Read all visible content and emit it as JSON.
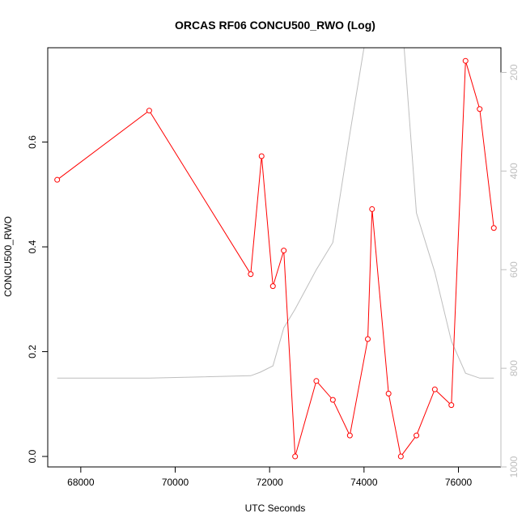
{
  "chart_data": {
    "type": "line",
    "title": "ORCAS RF06 CONCU500_RWO (Log)",
    "xlabel": "UTC Seconds",
    "ylabel": "CONCU500_RWO",
    "xlim": [
      67300,
      76900
    ],
    "ylim": [
      -0.02,
      0.78
    ],
    "x_ticks": [
      68000,
      70000,
      72000,
      74000,
      76000
    ],
    "y_ticks": [
      0.0,
      0.2,
      0.4,
      0.6
    ],
    "y_tick_labels": [
      "0.0",
      "0.2",
      "0.4",
      "0.6"
    ],
    "y2_range": [
      1000,
      150
    ],
    "y2_ticks": [
      200,
      400,
      600,
      800,
      1000
    ],
    "grid": false,
    "series": [
      {
        "color": "#ff0000",
        "marker": "open-circle",
        "axis": "left",
        "x": [
          67500,
          69450,
          71600,
          71830,
          72070,
          72300,
          72540,
          72990,
          73340,
          73700,
          74080,
          74170,
          74520,
          74780,
          75110,
          75500,
          75850,
          76150,
          76450,
          76750
        ],
        "y": [
          0.528,
          0.66,
          0.348,
          0.573,
          0.325,
          0.393,
          0.0,
          0.144,
          0.108,
          0.04,
          0.224,
          0.472,
          0.12,
          0.0,
          0.04,
          0.128,
          0.098,
          0.755,
          0.663,
          0.436
        ]
      },
      {
        "color": "#bebebe",
        "marker": "none",
        "axis": "right",
        "x": [
          67500,
          69450,
          71600,
          71800,
          72070,
          72300,
          72540,
          72990,
          73340,
          73700,
          74000,
          74850,
          75110,
          75500,
          75850,
          76150,
          76450,
          76750
        ],
        "y": [
          820,
          820,
          815,
          808,
          795,
          718,
          680,
          600,
          545,
          325,
          150,
          150,
          485,
          605,
          745,
          810,
          820,
          820
        ]
      }
    ]
  }
}
